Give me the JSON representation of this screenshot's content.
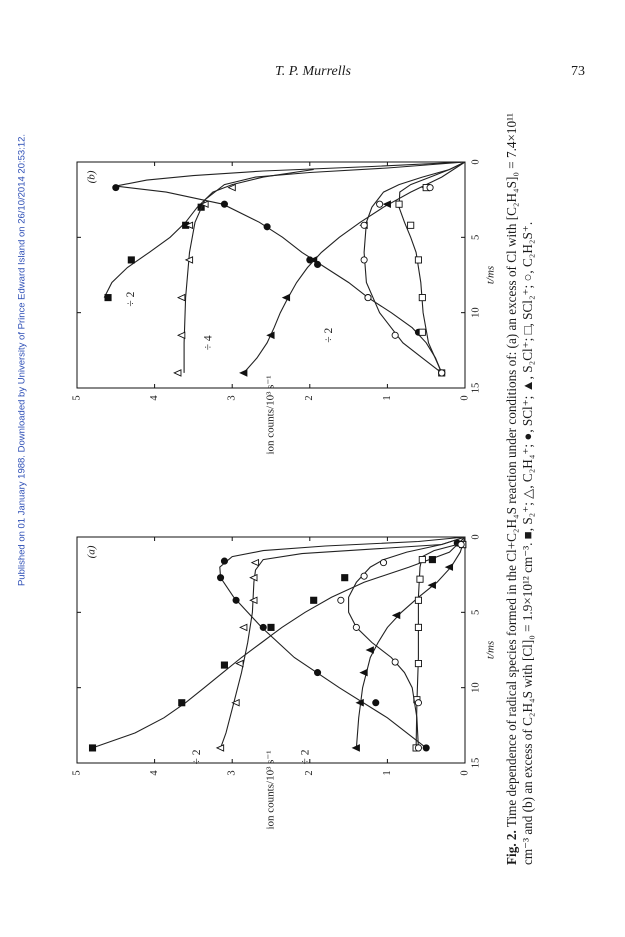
{
  "header": {
    "author": "T. P. Murrells",
    "page_number": "73"
  },
  "watermark": "Published on 01 January 1988. Downloaded by University of Prince Edward Island on 26/10/2014 20:53:12.",
  "caption": {
    "label": "Fig. 2.",
    "text": " Time dependence of radical species formed in the Cl+C₂H₄S reaction under conditions of: (a) an excess of Cl with [C₂H₄S]₀ = 7.4×10¹¹ cm⁻³ and (b) an excess of C₂H₄S with [Cl]₀ = 1.9×10¹² cm⁻³. ■, S₂⁺; △, C₂H₄⁺; ●, SCl⁺; ▲, S₂Cl⁺; □, SCl₂⁺; ○, C₂H₂S⁺."
  },
  "chart_data": [
    {
      "type": "scatter",
      "panel_label": "(a)",
      "xlabel": "t/ms",
      "ylabel": "ion counts/10³ s⁻¹",
      "xlim": [
        0,
        15
      ],
      "ylim": [
        0,
        5
      ],
      "xticks": [
        "0",
        "5",
        "10",
        "15"
      ],
      "yticks": [
        "0",
        "1",
        "2",
        "3",
        "4",
        "5"
      ],
      "annotations": [
        {
          "text": "÷ 2",
          "x": 14.6,
          "y": 3.45
        },
        {
          "text": "÷ 2",
          "x": 14.6,
          "y": 2.05
        }
      ],
      "series": [
        {
          "marker": "square-filled",
          "points": [
            [
              0.5,
              0.03
            ],
            [
              1.5,
              0.42
            ],
            [
              2.7,
              1.55
            ],
            [
              4.2,
              1.95
            ],
            [
              6.0,
              2.5
            ],
            [
              8.5,
              3.1
            ],
            [
              11.0,
              3.65
            ],
            [
              14.0,
              4.8
            ]
          ],
          "curve": [
            [
              0,
              0
            ],
            [
              1,
              0.2
            ],
            [
              2,
              0.72
            ],
            [
              3,
              1.3
            ],
            [
              4,
              1.72
            ],
            [
              5,
              2.06
            ],
            [
              6,
              2.36
            ],
            [
              7,
              2.62
            ],
            [
              8,
              2.88
            ],
            [
              9,
              3.12
            ],
            [
              10,
              3.36
            ],
            [
              11,
              3.6
            ],
            [
              12,
              3.88
            ],
            [
              13,
              4.25
            ],
            [
              14,
              4.8
            ]
          ]
        },
        {
          "marker": "triangle-open",
          "points": [
            [
              0.5,
              0.05
            ],
            [
              1.7,
              2.7
            ],
            [
              2.7,
              2.72
            ],
            [
              4.2,
              2.72
            ],
            [
              6.0,
              2.85
            ],
            [
              8.4,
              2.9
            ],
            [
              11.0,
              2.95
            ],
            [
              14.0,
              3.15
            ]
          ],
          "curve": [
            [
              0,
              0
            ],
            [
              0.5,
              0.3
            ],
            [
              0.8,
              1.2
            ],
            [
              1.1,
              2.1
            ],
            [
              1.5,
              2.6
            ],
            [
              2.2,
              2.7
            ],
            [
              3,
              2.72
            ],
            [
              5,
              2.74
            ],
            [
              7,
              2.8
            ],
            [
              9,
              2.88
            ],
            [
              11,
              2.98
            ],
            [
              13,
              3.08
            ],
            [
              14,
              3.15
            ]
          ]
        },
        {
          "marker": "circle-filled",
          "points": [
            [
              0.4,
              0.1
            ],
            [
              1.6,
              3.1
            ],
            [
              2.7,
              3.15
            ],
            [
              4.2,
              2.95
            ],
            [
              6.0,
              2.6
            ],
            [
              9.0,
              1.9
            ],
            [
              11.0,
              1.15
            ],
            [
              14.0,
              0.5
            ]
          ],
          "curve": [
            [
              0,
              0
            ],
            [
              0.3,
              0.6
            ],
            [
              0.6,
              1.8
            ],
            [
              0.9,
              2.6
            ],
            [
              1.3,
              3.0
            ],
            [
              2,
              3.16
            ],
            [
              2.7,
              3.15
            ],
            [
              4,
              2.98
            ],
            [
              6,
              2.62
            ],
            [
              8,
              2.2
            ],
            [
              10,
              1.62
            ],
            [
              12,
              1.0
            ],
            [
              14,
              0.5
            ]
          ]
        },
        {
          "marker": "triangle-filled",
          "points": [
            [
              0.5,
              0.03
            ],
            [
              2.0,
              0.2
            ],
            [
              3.2,
              0.42
            ],
            [
              5.2,
              0.88
            ],
            [
              7.5,
              1.22
            ],
            [
              9.0,
              1.3
            ],
            [
              11.0,
              1.35
            ],
            [
              14.0,
              1.4
            ]
          ],
          "curve": [
            [
              0,
              0
            ],
            [
              1,
              0.06
            ],
            [
              2,
              0.18
            ],
            [
              3,
              0.36
            ],
            [
              4,
              0.6
            ],
            [
              5,
              0.82
            ],
            [
              6,
              1.0
            ],
            [
              7,
              1.12
            ],
            [
              8,
              1.22
            ],
            [
              10,
              1.32
            ],
            [
              12,
              1.37
            ],
            [
              14,
              1.4
            ]
          ]
        },
        {
          "marker": "square-open",
          "points": [
            [
              0.5,
              0.03
            ],
            [
              1.5,
              0.55
            ],
            [
              2.8,
              0.58
            ],
            [
              4.2,
              0.6
            ],
            [
              6.0,
              0.6
            ],
            [
              8.4,
              0.6
            ],
            [
              10.8,
              0.62
            ],
            [
              14.0,
              0.63
            ]
          ],
          "curve": [
            [
              0,
              0
            ],
            [
              0.5,
              0.1
            ],
            [
              0.9,
              0.4
            ],
            [
              1.3,
              0.55
            ],
            [
              2,
              0.58
            ],
            [
              4,
              0.6
            ],
            [
              8,
              0.6
            ],
            [
              11,
              0.62
            ],
            [
              14,
              0.63
            ]
          ]
        },
        {
          "marker": "circle-open",
          "points": [
            [
              0.5,
              0.05
            ],
            [
              1.7,
              1.05
            ],
            [
              2.6,
              1.3
            ],
            [
              4.2,
              1.6
            ],
            [
              6.0,
              1.4
            ],
            [
              8.3,
              0.9
            ],
            [
              11.0,
              0.6
            ],
            [
              14.0,
              0.6
            ]
          ],
          "curve": [
            [
              0,
              0
            ],
            [
              0.5,
              0.3
            ],
            [
              1,
              0.75
            ],
            [
              1.5,
              1.05
            ],
            [
              2,
              1.22
            ],
            [
              3,
              1.4
            ],
            [
              4,
              1.5
            ],
            [
              5,
              1.5
            ],
            [
              6,
              1.4
            ],
            [
              7,
              1.2
            ],
            [
              8,
              0.95
            ],
            [
              9,
              0.78
            ],
            [
              10,
              0.68
            ],
            [
              12,
              0.62
            ],
            [
              14,
              0.6
            ]
          ]
        }
      ]
    },
    {
      "type": "scatter",
      "panel_label": "(b)",
      "xlabel": "t/ms",
      "ylabel": "ion counts/10³ s⁻¹",
      "xlim": [
        0,
        15
      ],
      "ylim": [
        0,
        5
      ],
      "xticks": [
        "0",
        "5",
        "10",
        "15"
      ],
      "yticks": [
        "0",
        "1",
        "2",
        "3",
        "4",
        "5"
      ],
      "annotations": [
        {
          "text": "÷ 2",
          "x": 9.1,
          "y": 4.3
        },
        {
          "text": "÷ 4",
          "x": 12.0,
          "y": 3.3
        },
        {
          "text": "÷ 2",
          "x": 11.5,
          "y": 1.75
        }
      ],
      "series": [
        {
          "marker": "square-filled",
          "points": [
            [
              3.0,
              3.4
            ],
            [
              4.2,
              3.6
            ],
            [
              6.5,
              4.3
            ],
            [
              9.0,
              4.6
            ]
          ],
          "curve": [
            [
              0.5,
              1.95
            ],
            [
              1,
              2.6
            ],
            [
              1.5,
              3.0
            ],
            [
              2,
              3.25
            ],
            [
              3,
              3.45
            ],
            [
              4,
              3.6
            ],
            [
              5,
              3.8
            ],
            [
              6,
              4.07
            ],
            [
              7,
              4.35
            ],
            [
              8,
              4.55
            ],
            [
              9,
              4.65
            ]
          ]
        },
        {
          "marker": "triangle-open",
          "points": [
            [
              1.7,
              3.0
            ],
            [
              2.8,
              3.35
            ],
            [
              4.2,
              3.55
            ],
            [
              6.5,
              3.55
            ],
            [
              9.0,
              3.65
            ],
            [
              11.5,
              3.65
            ],
            [
              14.0,
              3.7
            ]
          ],
          "curve": [
            [
              0,
              0
            ],
            [
              0.4,
              1.0
            ],
            [
              0.7,
              2.0
            ],
            [
              1,
              2.7
            ],
            [
              1.5,
              3.1
            ],
            [
              2.5,
              3.35
            ],
            [
              4,
              3.48
            ],
            [
              6,
              3.55
            ],
            [
              9,
              3.6
            ],
            [
              12,
              3.62
            ],
            [
              14,
              3.62
            ]
          ]
        },
        {
          "marker": "circle-filled",
          "points": [
            [
              1.7,
              4.5
            ],
            [
              2.8,
              3.1
            ],
            [
              4.3,
              2.55
            ],
            [
              6.5,
              2.0
            ],
            [
              6.8,
              1.9
            ],
            [
              9.0,
              1.25
            ],
            [
              11.3,
              0.6
            ],
            [
              14.0,
              0.3
            ]
          ],
          "curve": [
            [
              0,
              0
            ],
            [
              0.3,
              1.2
            ],
            [
              0.6,
              2.6
            ],
            [
              0.9,
              3.5
            ],
            [
              1.2,
              4.1
            ],
            [
              1.6,
              4.5
            ],
            [
              2,
              3.85
            ],
            [
              2.8,
              3.12
            ],
            [
              4,
              2.65
            ],
            [
              5,
              2.35
            ],
            [
              6,
              2.1
            ],
            [
              7,
              1.8
            ],
            [
              8,
              1.5
            ],
            [
              9,
              1.25
            ],
            [
              10,
              0.95
            ],
            [
              11,
              0.68
            ],
            [
              12,
              0.5
            ],
            [
              13,
              0.38
            ],
            [
              14,
              0.3
            ]
          ]
        },
        {
          "marker": "triangle-filled",
          "points": [
            [
              1.7,
              0.5
            ],
            [
              2.8,
              1.0
            ],
            [
              4.2,
              1.3
            ],
            [
              6.5,
              1.95
            ],
            [
              9.0,
              2.3
            ],
            [
              11.5,
              2.5
            ],
            [
              14.0,
              2.85
            ]
          ],
          "curve": [
            [
              0,
              0
            ],
            [
              1,
              0.3
            ],
            [
              2,
              0.7
            ],
            [
              3,
              1.05
            ],
            [
              4,
              1.35
            ],
            [
              5,
              1.62
            ],
            [
              6,
              1.85
            ],
            [
              7,
              2.03
            ],
            [
              8,
              2.17
            ],
            [
              9,
              2.28
            ],
            [
              10,
              2.38
            ],
            [
              11,
              2.46
            ],
            [
              12,
              2.55
            ],
            [
              13,
              2.68
            ],
            [
              14,
              2.85
            ]
          ]
        },
        {
          "marker": "square-open",
          "points": [
            [
              1.7,
              0.5
            ],
            [
              2.8,
              0.85
            ],
            [
              4.2,
              0.7
            ],
            [
              6.5,
              0.6
            ],
            [
              9.0,
              0.55
            ],
            [
              11.3,
              0.55
            ],
            [
              14.0,
              0.3
            ]
          ],
          "curve": [
            [
              0,
              0
            ],
            [
              0.5,
              0.2
            ],
            [
              1,
              0.45
            ],
            [
              1.5,
              0.7
            ],
            [
              2,
              0.84
            ],
            [
              3,
              0.85
            ],
            [
              4,
              0.78
            ],
            [
              5,
              0.7
            ],
            [
              6,
              0.63
            ],
            [
              8,
              0.57
            ],
            [
              10,
              0.54
            ],
            [
              12,
              0.47
            ],
            [
              14,
              0.3
            ]
          ]
        },
        {
          "marker": "circle-open",
          "points": [
            [
              1.7,
              0.45
            ],
            [
              2.8,
              1.1
            ],
            [
              4.2,
              1.3
            ],
            [
              6.5,
              1.3
            ],
            [
              9.0,
              1.25
            ],
            [
              11.5,
              0.9
            ],
            [
              14.0,
              0.3
            ]
          ],
          "curve": [
            [
              0,
              0
            ],
            [
              0.5,
              0.2
            ],
            [
              1,
              0.55
            ],
            [
              1.5,
              0.85
            ],
            [
              2,
              1.05
            ],
            [
              3,
              1.2
            ],
            [
              4,
              1.27
            ],
            [
              6,
              1.3
            ],
            [
              8,
              1.27
            ],
            [
              10,
              1.1
            ],
            [
              12,
              0.8
            ],
            [
              13,
              0.55
            ],
            [
              14,
              0.3
            ]
          ]
        }
      ]
    }
  ]
}
